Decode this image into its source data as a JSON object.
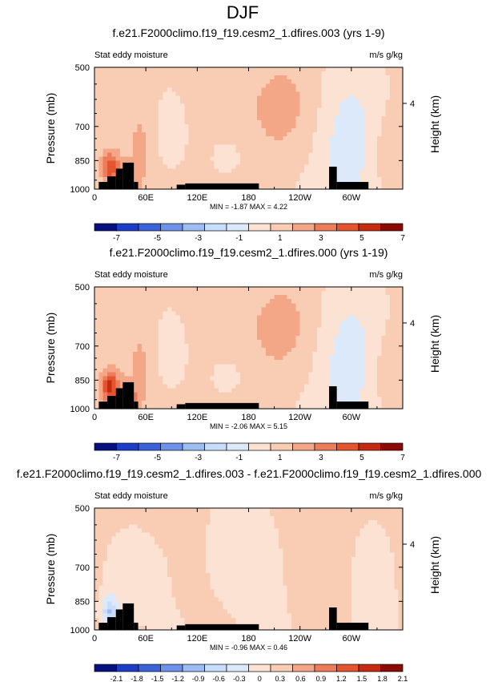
{
  "figure": {
    "title": "DJF"
  },
  "colors": {
    "palette": [
      "#08107d",
      "#1b3ec6",
      "#3a63d9",
      "#6e92e8",
      "#9dbcf2",
      "#c7ddfa",
      "#dce9fb",
      "#fbe2d3",
      "#f9ccb4",
      "#f3a787",
      "#ec7d5b",
      "#e4552f",
      "#c62b12",
      "#8c0a05"
    ],
    "land_mask": "#000000",
    "frame": "#000000"
  },
  "chart_data": [
    {
      "type": "heatmap",
      "title": "f.e21.F2000climo.f19_f19.cesm2_1.dfires.003 (yrs 1-9)",
      "left_label": "Stat eddy moisture",
      "right_label": "m/s g/kg",
      "ylabel": "Pressure (mb)",
      "y2label": "Height (km)",
      "yticks": [
        "500",
        "700",
        "850",
        "1000"
      ],
      "y2ticks": [
        "4"
      ],
      "xticks": [
        "0",
        "60E",
        "120E",
        "180",
        "120W",
        "60W"
      ],
      "xlim_deg": [
        0,
        360
      ],
      "ylim_mb": [
        1000,
        500
      ],
      "stats": "MIN = -1.87  MAX = 4.22",
      "colorbar_labels": [
        "-7",
        "-5",
        "-3",
        "-1",
        "1",
        "3",
        "5",
        "7"
      ],
      "colorbar_levels": [
        -7,
        -6,
        -5,
        -4,
        -3,
        -2,
        -1,
        0,
        1,
        2,
        3,
        4,
        5,
        6,
        7
      ],
      "min": -1.87,
      "max": 4.22
    },
    {
      "type": "heatmap",
      "title": "f.e21.F2000climo.f19_f19.cesm2_1.dfires.000 (yrs 1-19)",
      "left_label": "Stat eddy moisture",
      "right_label": "m/s g/kg",
      "ylabel": "Pressure (mb)",
      "y2label": "Height (km)",
      "yticks": [
        "500",
        "700",
        "850",
        "1000"
      ],
      "y2ticks": [
        "4"
      ],
      "xticks": [
        "0",
        "60E",
        "120E",
        "180",
        "120W",
        "60W"
      ],
      "xlim_deg": [
        0,
        360
      ],
      "ylim_mb": [
        1000,
        500
      ],
      "stats": "MIN = -2.06  MAX = 5.15",
      "colorbar_labels": [
        "-7",
        "-5",
        "-3",
        "-1",
        "1",
        "3",
        "5",
        "7"
      ],
      "colorbar_levels": [
        -7,
        -6,
        -5,
        -4,
        -3,
        -2,
        -1,
        0,
        1,
        2,
        3,
        4,
        5,
        6,
        7
      ],
      "min": -2.06,
      "max": 5.15
    },
    {
      "type": "heatmap",
      "title": "f.e21.F2000climo.f19_f19.cesm2_1.dfires.003 - f.e21.F2000climo.f19_f19.cesm2_1.dfires.000",
      "left_label": "Stat eddy moisture",
      "right_label": "m/s g/kg",
      "ylabel": "Pressure (mb)",
      "y2label": "Height (km)",
      "yticks": [
        "500",
        "700",
        "850",
        "1000"
      ],
      "y2ticks": [
        "4"
      ],
      "xticks": [
        "0",
        "60E",
        "120E",
        "180",
        "120W",
        "60W"
      ],
      "xlim_deg": [
        0,
        360
      ],
      "ylim_mb": [
        1000,
        500
      ],
      "stats": "MIN = -0.96  MAX = 0.46",
      "colorbar_labels": [
        "-2.1",
        "-1.8",
        "-1.5",
        "-1.2",
        "-0.9",
        "-0.6",
        "-0.3",
        "0",
        "0.3",
        "0.6",
        "0.9",
        "1.2",
        "1.5",
        "1.8",
        "2.1"
      ],
      "colorbar_levels": [
        -2.1,
        -1.8,
        -1.5,
        -1.2,
        -0.9,
        -0.6,
        -0.3,
        0,
        0.3,
        0.6,
        0.9,
        1.2,
        1.5,
        1.8,
        2.1
      ],
      "min": -0.96,
      "max": 0.46
    }
  ]
}
